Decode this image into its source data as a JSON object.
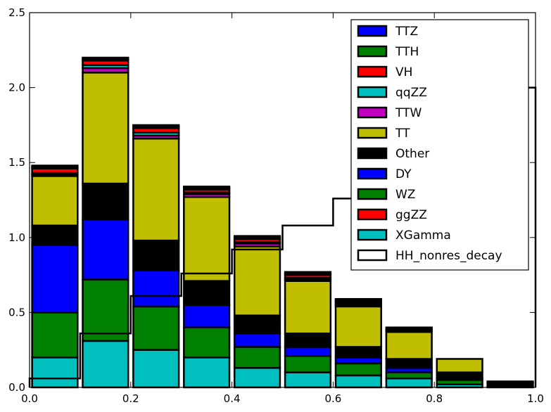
{
  "chart_data": {
    "type": "bar",
    "stacked": true,
    "xlim": [
      0,
      1
    ],
    "ylim": [
      0,
      2.5
    ],
    "xticks": [
      "0.0",
      "0.2",
      "0.4",
      "0.6",
      "0.8",
      "1.0"
    ],
    "yticks": [
      "0.0",
      "0.5",
      "1.0",
      "1.5",
      "2.0",
      "2.5"
    ],
    "grid": false,
    "legend_placement": "top-right",
    "bins": [
      {
        "x0": 0.0,
        "x1": 0.1
      },
      {
        "x0": 0.1,
        "x1": 0.2
      },
      {
        "x0": 0.2,
        "x1": 0.3
      },
      {
        "x0": 0.3,
        "x1": 0.4
      },
      {
        "x0": 0.4,
        "x1": 0.5
      },
      {
        "x0": 0.5,
        "x1": 0.6
      },
      {
        "x0": 0.6,
        "x1": 0.7
      },
      {
        "x0": 0.7,
        "x1": 0.8
      },
      {
        "x0": 0.8,
        "x1": 0.9
      },
      {
        "x0": 0.9,
        "x1": 1.0
      }
    ],
    "series": [
      {
        "name": "XGamma",
        "color": "#00BFBF",
        "values": [
          0.2,
          0.31,
          0.25,
          0.2,
          0.13,
          0.1,
          0.08,
          0.06,
          0.02,
          0.0
        ]
      },
      {
        "name": "ggZZ",
        "color": "#FF0000",
        "values": [
          0.0,
          0.0,
          0.0,
          0.0,
          0.0,
          0.0,
          0.0,
          0.0,
          0.0,
          0.0
        ]
      },
      {
        "name": "WZ",
        "color": "#008000",
        "values": [
          0.3,
          0.41,
          0.29,
          0.2,
          0.14,
          0.11,
          0.08,
          0.04,
          0.03,
          0.01
        ]
      },
      {
        "name": "DY",
        "color": "#0000FF",
        "values": [
          0.45,
          0.4,
          0.24,
          0.15,
          0.09,
          0.06,
          0.04,
          0.03,
          0.01,
          0.0
        ]
      },
      {
        "name": "Other",
        "color": "#000000",
        "values": [
          0.13,
          0.24,
          0.2,
          0.16,
          0.12,
          0.09,
          0.07,
          0.06,
          0.04,
          0.02
        ]
      },
      {
        "name": "TT",
        "color": "#BFBF00",
        "values": [
          0.33,
          0.74,
          0.68,
          0.56,
          0.46,
          0.35,
          0.27,
          0.18,
          0.09,
          0.01
        ]
      },
      {
        "name": "TTW",
        "color": "#BF00BF",
        "values": [
          0.01,
          0.03,
          0.02,
          0.02,
          0.02,
          0.01,
          0.01,
          0.01,
          0.0,
          0.0
        ]
      },
      {
        "name": "qqZZ",
        "color": "#00BFBF",
        "values": [
          0.01,
          0.02,
          0.02,
          0.01,
          0.01,
          0.01,
          0.01,
          0.0,
          0.0,
          0.0
        ]
      },
      {
        "name": "VH",
        "color": "#FF0000",
        "values": [
          0.03,
          0.03,
          0.03,
          0.02,
          0.02,
          0.02,
          0.01,
          0.01,
          0.0,
          0.0
        ]
      },
      {
        "name": "TTH",
        "color": "#008000",
        "values": [
          0.01,
          0.01,
          0.01,
          0.01,
          0.01,
          0.01,
          0.01,
          0.01,
          0.0,
          0.0
        ]
      },
      {
        "name": "TTZ",
        "color": "#0000FF",
        "values": [
          0.01,
          0.01,
          0.01,
          0.01,
          0.01,
          0.01,
          0.01,
          0.0,
          0.0,
          0.0
        ]
      }
    ],
    "step_series": {
      "name": "HH_nonres_decay",
      "color": "#000000",
      "values": [
        0.06,
        0.36,
        0.61,
        0.76,
        0.92,
        1.08,
        1.26,
        1.32,
        1.72,
        2.0
      ]
    },
    "legend": [
      {
        "label": "TTZ",
        "color": "#0000FF",
        "kind": "fill"
      },
      {
        "label": "TTH",
        "color": "#008000",
        "kind": "fill"
      },
      {
        "label": "VH",
        "color": "#FF0000",
        "kind": "fill"
      },
      {
        "label": "qqZZ",
        "color": "#00BFBF",
        "kind": "fill"
      },
      {
        "label": "TTW",
        "color": "#BF00BF",
        "kind": "fill"
      },
      {
        "label": "TT",
        "color": "#BFBF00",
        "kind": "fill"
      },
      {
        "label": "Other",
        "color": "#000000",
        "kind": "fill"
      },
      {
        "label": "DY",
        "color": "#0000FF",
        "kind": "fill"
      },
      {
        "label": "WZ",
        "color": "#008000",
        "kind": "fill"
      },
      {
        "label": "ggZZ",
        "color": "#FF0000",
        "kind": "fill"
      },
      {
        "label": "XGamma",
        "color": "#00BFBF",
        "kind": "fill"
      },
      {
        "label": "HH_nonres_decay",
        "color": "#FFFFFF",
        "kind": "outline"
      }
    ]
  }
}
